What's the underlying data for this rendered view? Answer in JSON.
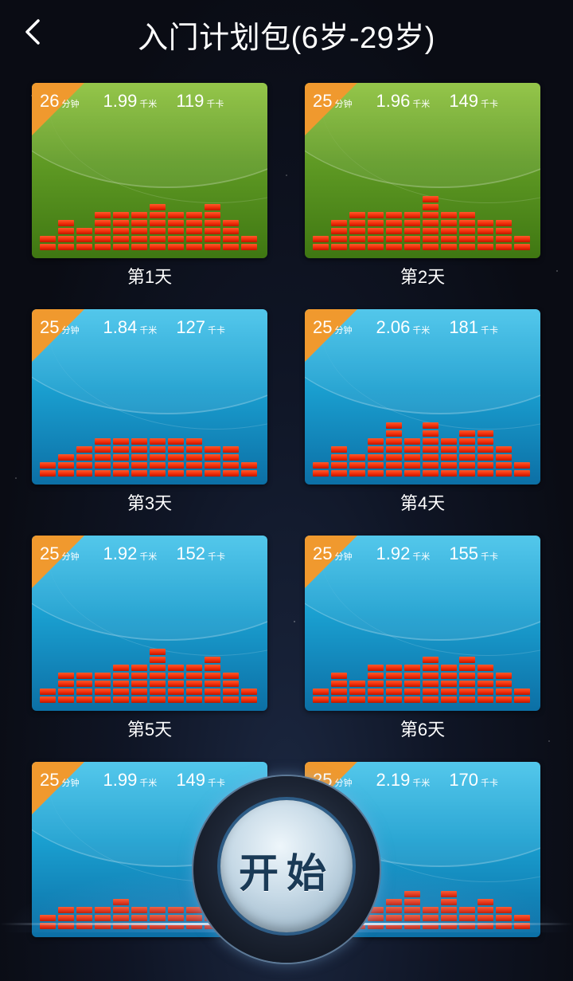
{
  "header": {
    "title": "入门计划包(6岁-29岁)"
  },
  "units": {
    "minute": "分钟",
    "km": "千米",
    "kcal": "千卡"
  },
  "plans": [
    {
      "theme": "green",
      "minutes": "26",
      "km": "1.99",
      "kcal": "119",
      "day": "第1天",
      "levels": [
        2,
        4,
        3,
        5,
        5,
        5,
        6,
        5,
        5,
        6,
        4,
        2
      ]
    },
    {
      "theme": "green",
      "minutes": "25",
      "km": "1.96",
      "kcal": "149",
      "day": "第2天",
      "levels": [
        2,
        4,
        5,
        5,
        5,
        5,
        7,
        5,
        5,
        4,
        4,
        2
      ]
    },
    {
      "theme": "blue",
      "minutes": "25",
      "km": "1.84",
      "kcal": "127",
      "day": "第3天",
      "levels": [
        2,
        3,
        4,
        5,
        5,
        5,
        5,
        5,
        5,
        4,
        4,
        2
      ]
    },
    {
      "theme": "blue",
      "minutes": "25",
      "km": "2.06",
      "kcal": "181",
      "day": "第4天",
      "levels": [
        2,
        4,
        3,
        5,
        7,
        5,
        7,
        5,
        6,
        6,
        4,
        2
      ]
    },
    {
      "theme": "blue",
      "minutes": "25",
      "km": "1.92",
      "kcal": "152",
      "day": "第5天",
      "levels": [
        2,
        4,
        4,
        4,
        5,
        5,
        7,
        5,
        5,
        6,
        4,
        2
      ]
    },
    {
      "theme": "blue",
      "minutes": "25",
      "km": "1.92",
      "kcal": "155",
      "day": "第6天",
      "levels": [
        2,
        4,
        3,
        5,
        5,
        5,
        6,
        5,
        6,
        5,
        4,
        2
      ]
    },
    {
      "theme": "blue",
      "minutes": "25",
      "km": "1.99",
      "kcal": "149",
      "day": "",
      "levels": [
        2,
        3,
        3,
        3,
        4,
        3,
        3,
        3,
        3,
        3,
        3,
        3
      ]
    },
    {
      "theme": "blue",
      "minutes": "25",
      "km": "2.19",
      "kcal": "170",
      "day": "",
      "levels": [
        2,
        3,
        3,
        3,
        4,
        5,
        3,
        5,
        3,
        4,
        3,
        2
      ]
    }
  ],
  "start_button": {
    "label": "开始"
  },
  "icons": {
    "back": "chevron-left-icon"
  }
}
